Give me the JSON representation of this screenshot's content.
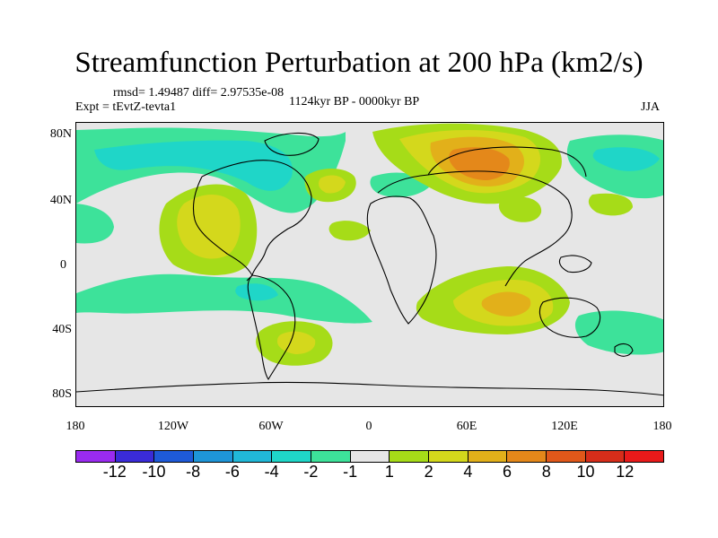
{
  "title": "Streamfunction Perturbation at 200 hPa (km2/s)",
  "stats": "rmsd= 1.49487 diff= 2.97535e-08",
  "experiment": "Expt = tEvtZ-tevta1",
  "period": "1124kyr BP - 0000kyr BP",
  "season": "JJA",
  "lat_labels": [
    "80N",
    "40N",
    "0",
    "40S",
    "80S"
  ],
  "lon_labels": [
    "180",
    "120W",
    "60W",
    "0",
    "60E",
    "120E",
    "180"
  ],
  "colorbar": {
    "labels": [
      "-12",
      "-10",
      "-8",
      "-6",
      "-4",
      "-2",
      "-1",
      "1",
      "2",
      "4",
      "6",
      "8",
      "10",
      "12"
    ],
    "colors": [
      "#9a2bf0",
      "#3a2bd8",
      "#1e5ad8",
      "#1e95d8",
      "#21b8d8",
      "#1fd6c8",
      "#3de29a",
      "#e6e6e6",
      "#a6dc18",
      "#d4d81c",
      "#e2b01a",
      "#e4881a",
      "#e0581a",
      "#d62d1a",
      "#e81a1a"
    ]
  },
  "chart_data": {
    "type": "heatmap",
    "title": "Streamfunction Perturbation at 200 hPa (km2/s)",
    "x_range": [
      -180,
      180
    ],
    "y_range": [
      -90,
      90
    ],
    "x_ticks": [
      "180",
      "120W",
      "60W",
      "0",
      "60E",
      "120E",
      "180"
    ],
    "y_ticks": [
      "80N",
      "40N",
      "0",
      "40S",
      "80S"
    ],
    "contour_levels": [
      -12,
      -10,
      -8,
      -6,
      -4,
      -2,
      -1,
      1,
      2,
      4,
      6,
      8,
      10,
      12
    ]
  }
}
